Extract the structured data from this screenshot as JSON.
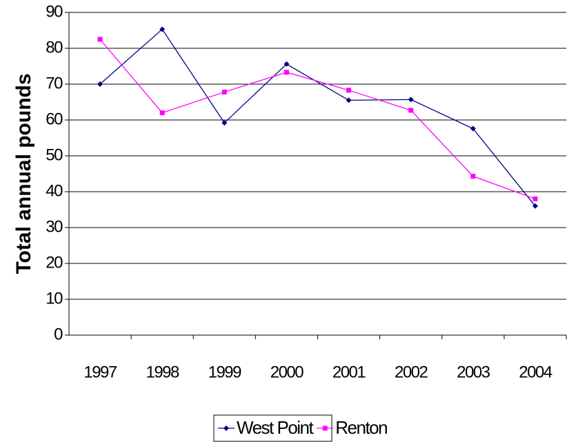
{
  "chart_data": {
    "type": "line",
    "y_label": "Total annual pounds",
    "categories": [
      "1997",
      "1998",
      "1999",
      "2000",
      "2001",
      "2002",
      "2003",
      "2004"
    ],
    "series": [
      {
        "name": "West Point",
        "color": "#000080",
        "marker": "diamond",
        "values": [
          70,
          85.3,
          59.2,
          75.6,
          65.5,
          65.7,
          57.6,
          36
        ]
      },
      {
        "name": "Renton",
        "color": "#ff00ff",
        "marker": "square",
        "values": [
          82.5,
          62,
          67.8,
          73.3,
          68.3,
          62.7,
          44.3,
          38
        ]
      }
    ],
    "ylim": [
      0,
      90
    ],
    "yticks": [
      0,
      10,
      20,
      30,
      40,
      50,
      60,
      70,
      80,
      90
    ],
    "grid": true,
    "legend": "bottom"
  }
}
